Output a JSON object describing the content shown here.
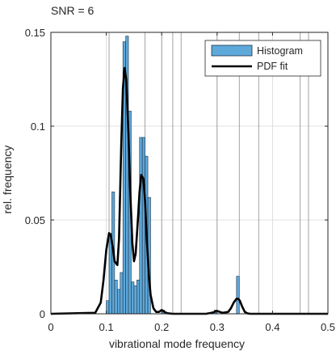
{
  "chart_data": {
    "type": "bar",
    "title": "SNR = 6",
    "xlabel": "vibrational mode frequency",
    "ylabel": "rel. frequency",
    "xlim": [
      0,
      0.5
    ],
    "ylim": [
      0,
      0.15
    ],
    "xticks": [
      0,
      0.1,
      0.2,
      0.3,
      0.4,
      0.5
    ],
    "xtick_labels": [
      "0",
      "0.1",
      "0.2",
      "0.3",
      "0.4",
      "0.5"
    ],
    "yticks": [
      0,
      0.05,
      0.1,
      0.15
    ],
    "ytick_labels": [
      "0",
      "0.05",
      "0.1",
      "0.15"
    ],
    "grid": true,
    "legend": {
      "position": "top-right",
      "entries": [
        "Histogram",
        "PDF fit"
      ]
    },
    "colors": {
      "histogram_fill": "#5ea8da",
      "histogram_edge": "#1f3347",
      "pdf_line": "#000000",
      "grid": "#d8d8d8",
      "reference_lines": "#8c8c8c"
    },
    "reference_lines_x": [
      0.105,
      0.17,
      0.2,
      0.22,
      0.235,
      0.3,
      0.34,
      0.375,
      0.45,
      0.465
    ],
    "histogram": {
      "name": "Histogram",
      "bin_width": 0.005,
      "bins": [
        {
          "x": 0.1,
          "y": 0.007
        },
        {
          "x": 0.105,
          "y": 0.043
        },
        {
          "x": 0.11,
          "y": 0.065
        },
        {
          "x": 0.115,
          "y": 0.018
        },
        {
          "x": 0.12,
          "y": 0.013
        },
        {
          "x": 0.125,
          "y": 0.022
        },
        {
          "x": 0.13,
          "y": 0.145
        },
        {
          "x": 0.135,
          "y": 0.148
        },
        {
          "x": 0.14,
          "y": 0.108
        },
        {
          "x": 0.145,
          "y": 0.017
        },
        {
          "x": 0.15,
          "y": 0.015
        },
        {
          "x": 0.155,
          "y": 0.018
        },
        {
          "x": 0.16,
          "y": 0.094
        },
        {
          "x": 0.165,
          "y": 0.094
        },
        {
          "x": 0.17,
          "y": 0.084
        },
        {
          "x": 0.175,
          "y": 0.062
        },
        {
          "x": 0.2,
          "y": 0.002
        },
        {
          "x": 0.295,
          "y": 0.002
        },
        {
          "x": 0.335,
          "y": 0.02
        }
      ]
    },
    "pdf_fit": {
      "name": "PDF fit",
      "x": [
        0,
        0.08,
        0.09,
        0.095,
        0.1,
        0.105,
        0.108,
        0.112,
        0.115,
        0.12,
        0.123,
        0.127,
        0.13,
        0.133,
        0.136,
        0.14,
        0.143,
        0.147,
        0.15,
        0.153,
        0.157,
        0.16,
        0.163,
        0.167,
        0.17,
        0.173,
        0.177,
        0.18,
        0.185,
        0.19,
        0.195,
        0.2,
        0.205,
        0.21,
        0.22,
        0.28,
        0.29,
        0.295,
        0.3,
        0.305,
        0.31,
        0.32,
        0.325,
        0.33,
        0.335,
        0.338,
        0.341,
        0.345,
        0.35,
        0.355,
        0.36,
        0.5
      ],
      "y": [
        0,
        0.0005,
        0.006,
        0.018,
        0.034,
        0.043,
        0.042,
        0.035,
        0.028,
        0.026,
        0.04,
        0.09,
        0.12,
        0.131,
        0.125,
        0.096,
        0.067,
        0.038,
        0.028,
        0.032,
        0.05,
        0.065,
        0.074,
        0.072,
        0.06,
        0.04,
        0.02,
        0.01,
        0.003,
        0.001,
        0.001,
        0.002,
        0.001,
        0.0003,
        0,
        0,
        0.0005,
        0.001,
        0.0015,
        0.001,
        0.0005,
        0.001,
        0.003,
        0.006,
        0.008,
        0.008,
        0.007,
        0.004,
        0.001,
        0.0002,
        0,
        0
      ]
    }
  }
}
